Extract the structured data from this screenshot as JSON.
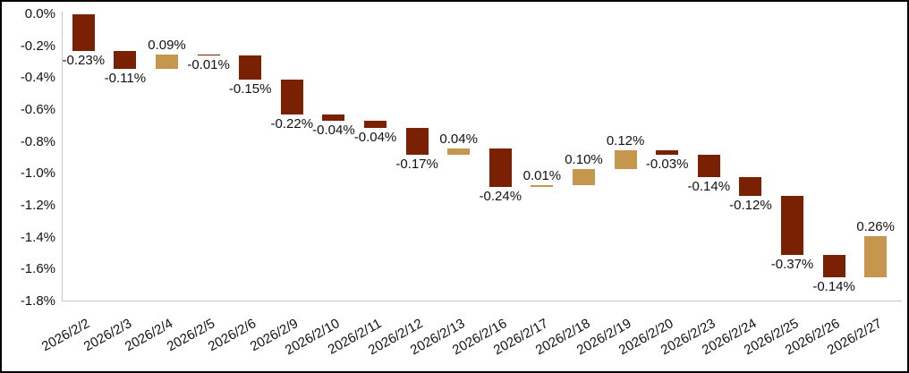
{
  "chart_data": {
    "type": "bar",
    "variant": "waterfall",
    "title": "",
    "xlabel": "",
    "ylabel": "",
    "categories": [
      "2026/2/2",
      "2026/2/3",
      "2026/2/4",
      "2026/2/5",
      "2026/2/6",
      "2026/2/9",
      "2026/2/10",
      "2026/2/11",
      "2026/2/12",
      "2026/2/13",
      "2026/2/16",
      "2026/2/17",
      "2026/2/18",
      "2026/2/19",
      "2026/2/20",
      "2026/2/23",
      "2026/2/24",
      "2026/2/25",
      "2026/2/26",
      "2026/2/27"
    ],
    "values": [
      -0.23,
      -0.11,
      0.09,
      -0.01,
      -0.15,
      -0.22,
      -0.04,
      -0.04,
      -0.17,
      0.04,
      -0.24,
      0.01,
      0.1,
      0.12,
      -0.03,
      -0.14,
      -0.12,
      -0.37,
      -0.14,
      0.26
    ],
    "labels": [
      "-0.23%",
      "-0.11%",
      "0.09%",
      "-0.01%",
      "-0.15%",
      "-0.22%",
      "-0.04%",
      "-0.04%",
      "-0.17%",
      "0.04%",
      "-0.24%",
      "0.01%",
      "0.10%",
      "0.12%",
      "-0.03%",
      "-0.14%",
      "-0.12%",
      "-0.37%",
      "-0.14%",
      "0.26%"
    ],
    "waterfall_start": 0.0,
    "cumulative_end": -1.39,
    "ylim": [
      -1.8,
      0.0
    ],
    "ytick_step": 0.2,
    "yticks": [
      "0.0%",
      "-0.2%",
      "-0.4%",
      "-0.6%",
      "-0.8%",
      "-1.0%",
      "-1.2%",
      "-1.4%",
      "-1.6%",
      "-1.8%"
    ],
    "grid": false,
    "legend": "none",
    "label_position": "outside-end",
    "colors": {
      "negative_bar": "#7A2104",
      "positive_bar": "#C5964D",
      "axis_line": "#C6C6C6",
      "text": "#111111",
      "frame_border": "#000000",
      "background": "#FFFFFF"
    }
  }
}
